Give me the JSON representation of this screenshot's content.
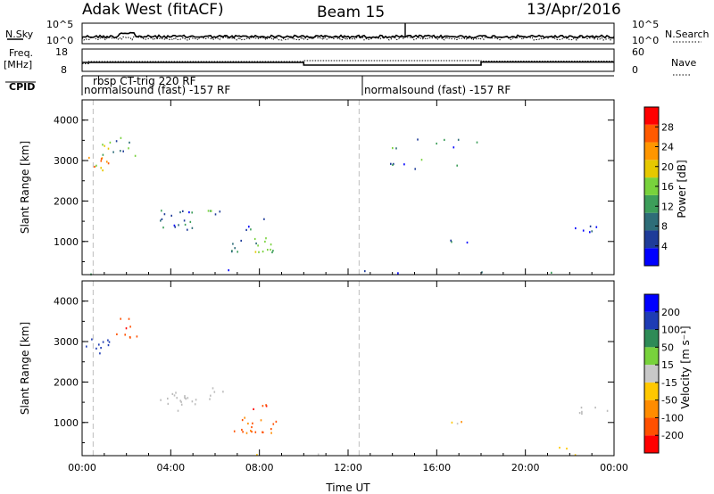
{
  "header": {
    "radar_name": "Adak West (fitACF)",
    "beam": "Beam 15",
    "date": "13/Apr/2016"
  },
  "noise_panel": {
    "left_label": "N.Sky",
    "right_label": "N.Search",
    "left_ticks": [
      "10^5",
      "10^0"
    ],
    "right_ticks": [
      "10^5",
      "10^0"
    ]
  },
  "freq_panel": {
    "left_label_line1": "Freq.",
    "left_label_line2": "[MHz]",
    "left_ticks": [
      "18",
      "8"
    ],
    "right_label": "Nave",
    "right_ticks": [
      "60",
      "0"
    ],
    "freq_steps": [
      {
        "t0": 0.0,
        "t1": 10.0,
        "mhz": 12.0
      },
      {
        "t0": 10.0,
        "t1": 18.0,
        "mhz": 10.5
      },
      {
        "t0": 18.0,
        "t1": 24.0,
        "mhz": 12.2
      }
    ],
    "nave_steps": [
      {
        "t0": 0.0,
        "t1": 0.3,
        "nave": 20
      },
      {
        "t0": 0.3,
        "t1": 10.0,
        "nave": 27
      },
      {
        "t0": 10.0,
        "t1": 18.0,
        "nave": 30
      },
      {
        "t0": 18.0,
        "t1": 24.0,
        "nave": 28
      }
    ]
  },
  "cpid_panel": {
    "label": "CPID",
    "segments": [
      {
        "t": 0.0,
        "line1": "rbsp CT-trig 220 RF",
        "line2": "normalsound (fast) -157 RF"
      },
      {
        "t": 12.5,
        "line1": "",
        "line2": "normalsound (fast) -157 RF"
      }
    ]
  },
  "colors": {
    "power_scale": [
      "#0000ff",
      "#1f3c99",
      "#2e6d78",
      "#3d9e5a",
      "#78d23c",
      "#e6c800",
      "#ff9600",
      "#ff5a00",
      "#ff0000"
    ],
    "velocity_scale": [
      "#ff0000",
      "#ff5000",
      "#ff8c00",
      "#ffc800",
      "#c8c8c8",
      "#78d23c",
      "#2e8b57",
      "#1e3cb4",
      "#0000ff"
    ],
    "ground_scatter": "#bcbcbc"
  },
  "chart_data": [
    {
      "type": "heatmap",
      "name": "power",
      "ylabel": "Slant Range [km]",
      "xlabel": "Time UT",
      "xlim": [
        0,
        24
      ],
      "ylim": [
        180,
        4500
      ],
      "x_ticks": [
        "00:00",
        "04:00",
        "08:00",
        "12:00",
        "16:00",
        "20:00",
        "00:00"
      ],
      "y_ticks": [
        1000,
        2000,
        3000,
        4000
      ],
      "colorbar": {
        "label": "Power [dB]",
        "ticks": [
          4,
          8,
          12,
          16,
          20,
          24,
          28
        ],
        "range": [
          0,
          32
        ]
      },
      "clusters": [
        {
          "t0": 0.1,
          "t1": 1.2,
          "r0": 2700,
          "r1": 3100,
          "power": 22,
          "density": 0.9
        },
        {
          "t0": 0.8,
          "t1": 2.5,
          "r0": 3000,
          "r1": 3600,
          "power": 12,
          "density": 0.5
        },
        {
          "t0": 3.5,
          "t1": 5.2,
          "r0": 1300,
          "r1": 1800,
          "power": 8,
          "density": 0.85
        },
        {
          "t0": 5.5,
          "t1": 6.5,
          "r0": 1600,
          "r1": 1900,
          "power": 10,
          "density": 0.7
        },
        {
          "t0": 6.7,
          "t1": 8.8,
          "r0": 750,
          "r1": 1150,
          "power": 14,
          "density": 0.9
        },
        {
          "t0": 7.3,
          "t1": 8.4,
          "r0": 1300,
          "r1": 1600,
          "power": 9,
          "density": 0.5
        },
        {
          "t0": 16.0,
          "t1": 17.5,
          "r0": 950,
          "r1": 1050,
          "power": 6,
          "density": 0.8
        },
        {
          "t0": 21.5,
          "t1": 24.0,
          "r0": 1200,
          "r1": 1400,
          "power": 6,
          "density": 0.5
        },
        {
          "t0": 13.0,
          "t1": 18.0,
          "r0": 2800,
          "r1": 3600,
          "power": 10,
          "density": 0.15
        },
        {
          "t0": 0.0,
          "t1": 24.0,
          "r0": 200,
          "r1": 420,
          "power": 6,
          "density": 0.35
        }
      ]
    },
    {
      "type": "heatmap",
      "name": "velocity",
      "ylabel": "Slant Range [km]",
      "xlabel": "Time UT",
      "xlim": [
        0,
        24
      ],
      "ylim": [
        180,
        4500
      ],
      "x_ticks": [
        "00:00",
        "04:00",
        "08:00",
        "12:00",
        "16:00",
        "20:00",
        "00:00"
      ],
      "y_ticks": [
        1000,
        2000,
        3000,
        4000
      ],
      "colorbar": {
        "label": "Velocity [m s⁻¹]",
        "ticks": [
          -200,
          -100,
          -50,
          -15,
          15,
          50,
          100,
          200
        ]
      },
      "clusters": [
        {
          "t0": 0.1,
          "t1": 1.2,
          "r0": 2700,
          "r1": 3100,
          "velocity": 150,
          "density": 0.9
        },
        {
          "t0": 1.5,
          "t1": 2.5,
          "r0": 3100,
          "r1": 3600,
          "velocity": -180,
          "density": 0.7
        },
        {
          "t0": 3.5,
          "t1": 5.2,
          "r0": 1300,
          "r1": 1800,
          "velocity": 0,
          "density": 0.85
        },
        {
          "t0": 5.5,
          "t1": 6.5,
          "r0": 1600,
          "r1": 1900,
          "velocity": 0,
          "density": 0.6
        },
        {
          "t0": 6.7,
          "t1": 8.8,
          "r0": 750,
          "r1": 1150,
          "velocity": -120,
          "density": 0.9
        },
        {
          "t0": 7.3,
          "t1": 8.4,
          "r0": 1300,
          "r1": 1600,
          "velocity": -200,
          "density": 0.5
        },
        {
          "t0": 16.0,
          "t1": 17.5,
          "r0": 950,
          "r1": 1050,
          "velocity": -30,
          "density": 0.8
        },
        {
          "t0": 21.5,
          "t1": 24.0,
          "r0": 1200,
          "r1": 1400,
          "velocity": 0,
          "density": 0.5
        },
        {
          "t0": 0.0,
          "t1": 24.0,
          "r0": 200,
          "r1": 420,
          "velocity": -30,
          "density": 0.3
        }
      ]
    }
  ]
}
